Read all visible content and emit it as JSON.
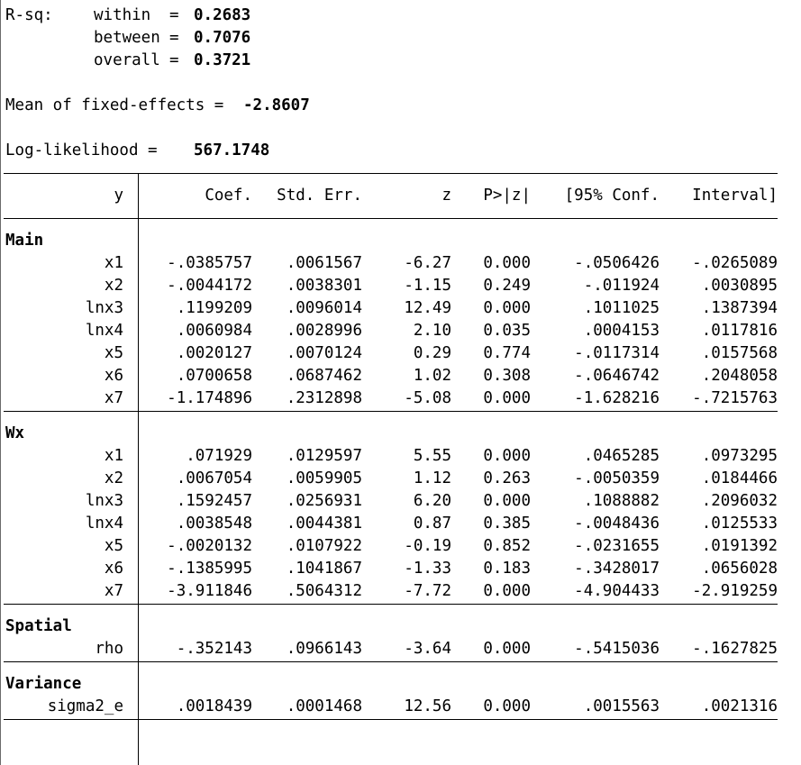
{
  "stats": {
    "rsq_label": "R-sq:",
    "within_label": "within",
    "within_value": "0.2683",
    "between_label": "between",
    "between_value": "0.7076",
    "overall_label": "overall",
    "overall_value": "0.3721",
    "mean_fe_label": "Mean of fixed-effects =",
    "mean_fe_value": "-2.8607",
    "loglik_label": "Log-likelihood =",
    "loglik_value": "567.1748"
  },
  "table": {
    "headers": [
      "y",
      "Coef.",
      "Std. Err.",
      "z",
      "P>|z|",
      "[95% Conf.",
      "Interval]"
    ],
    "sections": [
      {
        "name": "Main",
        "rows": [
          [
            "x1",
            "-.0385757",
            ".0061567",
            "-6.27",
            "0.000",
            "-.0506426",
            "-.0265089"
          ],
          [
            "x2",
            "-.0044172",
            ".0038301",
            "-1.15",
            "0.249",
            "-.011924",
            ".0030895"
          ],
          [
            "lnx3",
            ".1199209",
            ".0096014",
            "12.49",
            "0.000",
            ".1011025",
            ".1387394"
          ],
          [
            "lnx4",
            ".0060984",
            ".0028996",
            "2.10",
            "0.035",
            ".0004153",
            ".0117816"
          ],
          [
            "x5",
            ".0020127",
            ".0070124",
            "0.29",
            "0.774",
            "-.0117314",
            ".0157568"
          ],
          [
            "x6",
            ".0700658",
            ".0687462",
            "1.02",
            "0.308",
            "-.0646742",
            ".2048058"
          ],
          [
            "x7",
            "-1.174896",
            ".2312898",
            "-5.08",
            "0.000",
            "-1.628216",
            "-.7215763"
          ]
        ]
      },
      {
        "name": "Wx",
        "rows": [
          [
            "x1",
            ".071929",
            ".0129597",
            "5.55",
            "0.000",
            ".0465285",
            ".0973295"
          ],
          [
            "x2",
            ".0067054",
            ".0059905",
            "1.12",
            "0.263",
            "-.0050359",
            ".0184466"
          ],
          [
            "lnx3",
            ".1592457",
            ".0256931",
            "6.20",
            "0.000",
            ".1088882",
            ".2096032"
          ],
          [
            "lnx4",
            ".0038548",
            ".0044381",
            "0.87",
            "0.385",
            "-.0048436",
            ".0125533"
          ],
          [
            "x5",
            "-.0020132",
            ".0107922",
            "-0.19",
            "0.852",
            "-.0231655",
            ".0191392"
          ],
          [
            "x6",
            "-.1385995",
            ".1041867",
            "-1.33",
            "0.183",
            "-.3428017",
            ".0656028"
          ],
          [
            "x7",
            "-3.911846",
            ".5064312",
            "-7.72",
            "0.000",
            "-4.904433",
            "-2.919259"
          ]
        ]
      },
      {
        "name": "Spatial",
        "rows": [
          [
            "rho",
            "-.352143",
            ".0966143",
            "-3.64",
            "0.000",
            "-.5415036",
            "-.1627825"
          ]
        ]
      },
      {
        "name": "Variance",
        "rows": [
          [
            "sigma2_e",
            ".0018439",
            ".0001468",
            "12.56",
            "0.000",
            ".0015563",
            ".0021316"
          ]
        ]
      }
    ]
  }
}
